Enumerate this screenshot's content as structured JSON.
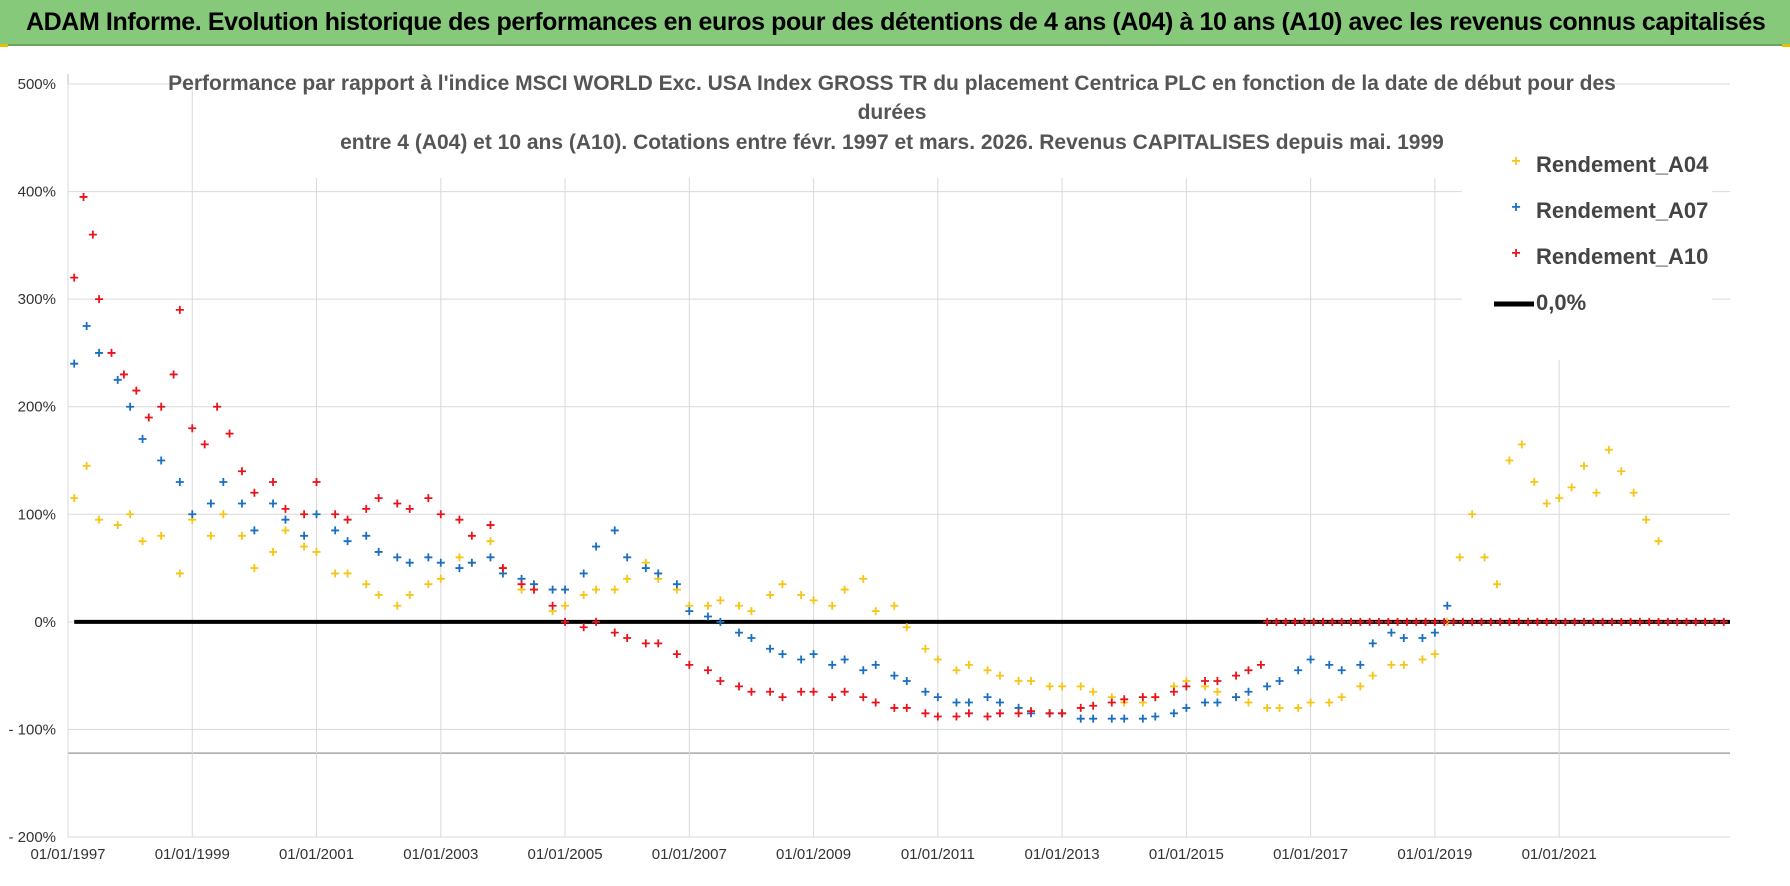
{
  "header": {
    "title": "ADAM Informe. Evolution historique des performances en euros pour des détentions de 4 ans (A04) à 10 ans (A10) avec les revenus connus capitalisés"
  },
  "chart_data": {
    "type": "scatter",
    "title_lines": [
      "Performance par rapport à l'indice MSCI WORLD Exc. USA Index GROSS TR  du placement Centrica PLC en fonction de la date de début pour des",
      "durées",
      "entre 4 (A04) et 10 ans (A10).  Cotations entre févr. 1997 et mars. 2026. Revenus CAPITALISES depuis mai. 1999"
    ],
    "x_tick_labels": [
      "01/01/1997",
      "01/01/1999",
      "01/01/2001",
      "01/01/2003",
      "01/01/2005",
      "01/01/2007",
      "01/01/2009",
      "01/01/2011",
      "01/01/2013",
      "01/01/2015",
      "01/01/2017",
      "01/01/2019",
      "01/01/2021"
    ],
    "y_tick_labels": [
      "500%",
      "400%",
      "300%",
      "200%",
      "100%",
      "0%",
      "- 100%",
      "- 200%"
    ],
    "y_ticks": [
      500,
      400,
      300,
      200,
      100,
      0,
      -100,
      -200
    ],
    "ylim": [
      -200,
      500
    ],
    "xlim": [
      1997.0,
      2023.75
    ],
    "grid": true,
    "legend_position": "top-right",
    "series": [
      {
        "name": "Rendement_A04",
        "color": "#f5c518",
        "marker": "plus",
        "points": [
          [
            1997.1,
            115
          ],
          [
            1997.3,
            145
          ],
          [
            1997.5,
            95
          ],
          [
            1997.8,
            90
          ],
          [
            1998.0,
            100
          ],
          [
            1998.2,
            75
          ],
          [
            1998.5,
            80
          ],
          [
            1998.8,
            45
          ],
          [
            1999.0,
            95
          ],
          [
            1999.3,
            80
          ],
          [
            1999.5,
            100
          ],
          [
            1999.8,
            80
          ],
          [
            2000.0,
            50
          ],
          [
            2000.3,
            65
          ],
          [
            2000.5,
            85
          ],
          [
            2000.8,
            70
          ],
          [
            2001.0,
            65
          ],
          [
            2001.3,
            45
          ],
          [
            2001.5,
            45
          ],
          [
            2001.8,
            35
          ],
          [
            2002.0,
            25
          ],
          [
            2002.3,
            15
          ],
          [
            2002.5,
            25
          ],
          [
            2002.8,
            35
          ],
          [
            2003.0,
            40
          ],
          [
            2003.3,
            60
          ],
          [
            2003.5,
            55
          ],
          [
            2003.8,
            75
          ],
          [
            2004.0,
            50
          ],
          [
            2004.3,
            30
          ],
          [
            2004.5,
            30
          ],
          [
            2004.8,
            10
          ],
          [
            2005.0,
            15
          ],
          [
            2005.3,
            25
          ],
          [
            2005.5,
            30
          ],
          [
            2005.8,
            30
          ],
          [
            2006.0,
            40
          ],
          [
            2006.3,
            55
          ],
          [
            2006.5,
            40
          ],
          [
            2006.8,
            30
          ],
          [
            2007.0,
            15
          ],
          [
            2007.3,
            15
          ],
          [
            2007.5,
            20
          ],
          [
            2007.8,
            15
          ],
          [
            2008.0,
            10
          ],
          [
            2008.3,
            25
          ],
          [
            2008.5,
            35
          ],
          [
            2008.8,
            25
          ],
          [
            2009.0,
            20
          ],
          [
            2009.3,
            15
          ],
          [
            2009.5,
            30
          ],
          [
            2009.8,
            40
          ],
          [
            2010.0,
            10
          ],
          [
            2010.3,
            15
          ],
          [
            2010.5,
            -5
          ],
          [
            2010.8,
            -25
          ],
          [
            2011.0,
            -35
          ],
          [
            2011.3,
            -45
          ],
          [
            2011.5,
            -40
          ],
          [
            2011.8,
            -45
          ],
          [
            2012.0,
            -50
          ],
          [
            2012.3,
            -55
          ],
          [
            2012.5,
            -55
          ],
          [
            2012.8,
            -60
          ],
          [
            2013.0,
            -60
          ],
          [
            2013.3,
            -60
          ],
          [
            2013.5,
            -65
          ],
          [
            2013.8,
            -70
          ],
          [
            2014.0,
            -75
          ],
          [
            2014.3,
            -75
          ],
          [
            2014.5,
            -70
          ],
          [
            2014.8,
            -60
          ],
          [
            2015.0,
            -55
          ],
          [
            2015.3,
            -60
          ],
          [
            2015.5,
            -65
          ],
          [
            2015.8,
            -70
          ],
          [
            2016.0,
            -75
          ],
          [
            2016.3,
            -80
          ],
          [
            2016.5,
            -80
          ],
          [
            2016.8,
            -80
          ],
          [
            2017.0,
            -75
          ],
          [
            2017.3,
            -75
          ],
          [
            2017.5,
            -70
          ],
          [
            2017.8,
            -60
          ],
          [
            2018.0,
            -50
          ],
          [
            2018.3,
            -40
          ],
          [
            2018.5,
            -40
          ],
          [
            2018.8,
            -35
          ],
          [
            2019.0,
            -30
          ],
          [
            2019.2,
            0
          ],
          [
            2019.4,
            60
          ],
          [
            2019.6,
            100
          ],
          [
            2019.8,
            60
          ],
          [
            2020.0,
            35
          ],
          [
            2020.2,
            150
          ],
          [
            2020.4,
            165
          ],
          [
            2020.6,
            130
          ],
          [
            2020.8,
            110
          ],
          [
            2021.0,
            115
          ],
          [
            2021.2,
            125
          ],
          [
            2021.4,
            145
          ],
          [
            2021.6,
            120
          ],
          [
            2021.8,
            160
          ],
          [
            2022.0,
            140
          ],
          [
            2022.2,
            120
          ],
          [
            2022.4,
            95
          ],
          [
            2022.6,
            75
          ]
        ]
      },
      {
        "name": "Rendement_A07",
        "color": "#1a6fc2",
        "marker": "plus",
        "points": [
          [
            1997.1,
            240
          ],
          [
            1997.3,
            275
          ],
          [
            1997.5,
            250
          ],
          [
            1997.8,
            225
          ],
          [
            1998.0,
            200
          ],
          [
            1998.2,
            170
          ],
          [
            1998.5,
            150
          ],
          [
            1998.8,
            130
          ],
          [
            1999.0,
            100
          ],
          [
            1999.3,
            110
          ],
          [
            1999.5,
            130
          ],
          [
            1999.8,
            110
          ],
          [
            2000.0,
            85
          ],
          [
            2000.3,
            110
          ],
          [
            2000.5,
            95
          ],
          [
            2000.8,
            80
          ],
          [
            2001.0,
            100
          ],
          [
            2001.3,
            85
          ],
          [
            2001.5,
            75
          ],
          [
            2001.8,
            80
          ],
          [
            2002.0,
            65
          ],
          [
            2002.3,
            60
          ],
          [
            2002.5,
            55
          ],
          [
            2002.8,
            60
          ],
          [
            2003.0,
            55
          ],
          [
            2003.3,
            50
          ],
          [
            2003.5,
            55
          ],
          [
            2003.8,
            60
          ],
          [
            2004.0,
            45
          ],
          [
            2004.3,
            40
          ],
          [
            2004.5,
            35
          ],
          [
            2004.8,
            30
          ],
          [
            2005.0,
            30
          ],
          [
            2005.3,
            45
          ],
          [
            2005.5,
            70
          ],
          [
            2005.8,
            85
          ],
          [
            2006.0,
            60
          ],
          [
            2006.3,
            50
          ],
          [
            2006.5,
            45
          ],
          [
            2006.8,
            35
          ],
          [
            2007.0,
            10
          ],
          [
            2007.3,
            5
          ],
          [
            2007.5,
            0
          ],
          [
            2007.8,
            -10
          ],
          [
            2008.0,
            -15
          ],
          [
            2008.3,
            -25
          ],
          [
            2008.5,
            -30
          ],
          [
            2008.8,
            -35
          ],
          [
            2009.0,
            -30
          ],
          [
            2009.3,
            -40
          ],
          [
            2009.5,
            -35
          ],
          [
            2009.8,
            -45
          ],
          [
            2010.0,
            -40
          ],
          [
            2010.3,
            -50
          ],
          [
            2010.5,
            -55
          ],
          [
            2010.8,
            -65
          ],
          [
            2011.0,
            -70
          ],
          [
            2011.3,
            -75
          ],
          [
            2011.5,
            -75
          ],
          [
            2011.8,
            -70
          ],
          [
            2012.0,
            -75
          ],
          [
            2012.3,
            -80
          ],
          [
            2012.5,
            -85
          ],
          [
            2012.8,
            -85
          ],
          [
            2013.0,
            -85
          ],
          [
            2013.3,
            -90
          ],
          [
            2013.5,
            -90
          ],
          [
            2013.8,
            -90
          ],
          [
            2014.0,
            -90
          ],
          [
            2014.3,
            -90
          ],
          [
            2014.5,
            -88
          ],
          [
            2014.8,
            -85
          ],
          [
            2015.0,
            -80
          ],
          [
            2015.3,
            -75
          ],
          [
            2015.5,
            -75
          ],
          [
            2015.8,
            -70
          ],
          [
            2016.0,
            -65
          ],
          [
            2016.3,
            -60
          ],
          [
            2016.5,
            -55
          ],
          [
            2016.8,
            -45
          ],
          [
            2017.0,
            -35
          ],
          [
            2017.3,
            -40
          ],
          [
            2017.5,
            -45
          ],
          [
            2017.8,
            -40
          ],
          [
            2018.0,
            -20
          ],
          [
            2018.3,
            -10
          ],
          [
            2018.5,
            -15
          ],
          [
            2018.8,
            -15
          ],
          [
            2019.0,
            -10
          ],
          [
            2019.2,
            15
          ]
        ]
      },
      {
        "name": "Rendement_A10",
        "color": "#e8141c",
        "marker": "plus",
        "points": [
          [
            1997.1,
            320
          ],
          [
            1997.25,
            395
          ],
          [
            1997.4,
            360
          ],
          [
            1997.5,
            300
          ],
          [
            1997.7,
            250
          ],
          [
            1997.9,
            230
          ],
          [
            1998.1,
            215
          ],
          [
            1998.3,
            190
          ],
          [
            1998.5,
            200
          ],
          [
            1998.7,
            230
          ],
          [
            1998.8,
            290
          ],
          [
            1999.0,
            180
          ],
          [
            1999.2,
            165
          ],
          [
            1999.4,
            200
          ],
          [
            1999.6,
            175
          ],
          [
            1999.8,
            140
          ],
          [
            2000.0,
            120
          ],
          [
            2000.3,
            130
          ],
          [
            2000.5,
            105
          ],
          [
            2000.8,
            100
          ],
          [
            2001.0,
            130
          ],
          [
            2001.3,
            100
          ],
          [
            2001.5,
            95
          ],
          [
            2001.8,
            105
          ],
          [
            2002.0,
            115
          ],
          [
            2002.3,
            110
          ],
          [
            2002.5,
            105
          ],
          [
            2002.8,
            115
          ],
          [
            2003.0,
            100
          ],
          [
            2003.3,
            95
          ],
          [
            2003.5,
            80
          ],
          [
            2003.8,
            90
          ],
          [
            2004.0,
            50
          ],
          [
            2004.3,
            35
          ],
          [
            2004.5,
            30
          ],
          [
            2004.8,
            15
          ],
          [
            2005.0,
            0
          ],
          [
            2005.3,
            -5
          ],
          [
            2005.5,
            0
          ],
          [
            2005.8,
            -10
          ],
          [
            2006.0,
            -15
          ],
          [
            2006.3,
            -20
          ],
          [
            2006.5,
            -20
          ],
          [
            2006.8,
            -30
          ],
          [
            2007.0,
            -40
          ],
          [
            2007.3,
            -45
          ],
          [
            2007.5,
            -55
          ],
          [
            2007.8,
            -60
          ],
          [
            2008.0,
            -65
          ],
          [
            2008.3,
            -65
          ],
          [
            2008.5,
            -70
          ],
          [
            2008.8,
            -65
          ],
          [
            2009.0,
            -65
          ],
          [
            2009.3,
            -70
          ],
          [
            2009.5,
            -65
          ],
          [
            2009.8,
            -70
          ],
          [
            2010.0,
            -75
          ],
          [
            2010.3,
            -80
          ],
          [
            2010.5,
            -80
          ],
          [
            2010.8,
            -85
          ],
          [
            2011.0,
            -88
          ],
          [
            2011.3,
            -88
          ],
          [
            2011.5,
            -85
          ],
          [
            2011.8,
            -88
          ],
          [
            2012.0,
            -85
          ],
          [
            2012.3,
            -85
          ],
          [
            2012.5,
            -83
          ],
          [
            2012.8,
            -85
          ],
          [
            2013.0,
            -85
          ],
          [
            2013.3,
            -80
          ],
          [
            2013.5,
            -78
          ],
          [
            2013.8,
            -75
          ],
          [
            2014.0,
            -72
          ],
          [
            2014.3,
            -70
          ],
          [
            2014.5,
            -70
          ],
          [
            2014.8,
            -65
          ],
          [
            2015.0,
            -60
          ],
          [
            2015.3,
            -55
          ],
          [
            2015.5,
            -55
          ],
          [
            2015.8,
            -50
          ],
          [
            2016.0,
            -45
          ],
          [
            2016.2,
            -40
          ]
        ]
      }
    ],
    "a10_zero_run": [
      2016.3,
      2023.7
    ],
    "zero_line": {
      "name": "0,0%",
      "value": 0,
      "color": "#000000"
    },
    "legend": [
      "Rendement_A04",
      "Rendement_A07",
      "Rendement_A10",
      "0,0%"
    ]
  }
}
